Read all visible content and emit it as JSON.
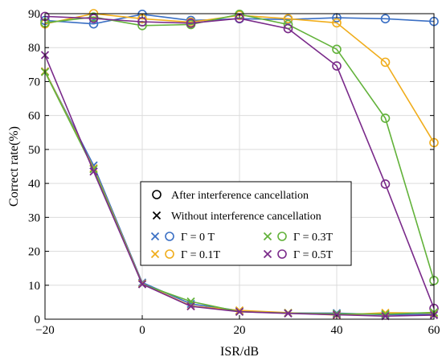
{
  "chart_data": {
    "type": "line",
    "xlabel": "ISR/dB",
    "ylabel": "Correct rate(%)",
    "xlim": [
      -20,
      60
    ],
    "ylim": [
      0,
      90
    ],
    "xticks": [
      -20,
      0,
      20,
      40,
      60
    ],
    "xtick_labels": [
      "−20",
      "0",
      "20",
      "40",
      "60"
    ],
    "yticks": [
      0,
      10,
      20,
      30,
      40,
      50,
      60,
      70,
      80,
      90
    ],
    "grid": true,
    "x": [
      -20,
      -10,
      0,
      10,
      20,
      30,
      40,
      50,
      60
    ],
    "legend": {
      "placement": "center",
      "marker_entries": [
        {
          "marker": "circle",
          "label": "After interference cancellation"
        },
        {
          "marker": "x",
          "label": "Without interference cancellation"
        }
      ],
      "gamma_entries": [
        {
          "label": "Γ = 0  T",
          "color": "#3a6fc4"
        },
        {
          "label": "Γ = 0.3T",
          "color": "#62b23a"
        },
        {
          "label": "Γ = 0.1T",
          "color": "#f0ad1c"
        },
        {
          "label": "Γ = 0.5T",
          "color": "#7a2a8a"
        }
      ]
    },
    "series": [
      {
        "gamma": "0T",
        "color": "#3a6fc4",
        "marker": "circle",
        "values": [
          88,
          87,
          89.8,
          88,
          88.5,
          88.3,
          88.8,
          88.5,
          87.7
        ]
      },
      {
        "gamma": "0.1T",
        "color": "#f0ad1c",
        "marker": "circle",
        "values": [
          87,
          90,
          88.5,
          87.5,
          89.5,
          88.5,
          87.3,
          75.7,
          52
        ]
      },
      {
        "gamma": "0.3T",
        "color": "#62b23a",
        "marker": "circle",
        "values": [
          87.3,
          89,
          86.5,
          86.8,
          89.8,
          86.8,
          79.5,
          59.2,
          11.4
        ]
      },
      {
        "gamma": "0.5T",
        "color": "#7a2a8a",
        "marker": "circle",
        "values": [
          89.2,
          88.6,
          87.6,
          87.2,
          88.6,
          85.6,
          74.6,
          39.8,
          3.2
        ]
      },
      {
        "gamma": "0T",
        "color": "#3a6fc4",
        "marker": "x",
        "values": [
          73,
          45.3,
          10.8,
          4.5,
          2.5,
          1.8,
          1.8,
          1.3,
          1.5
        ]
      },
      {
        "gamma": "0.1T",
        "color": "#f0ad1c",
        "marker": "x",
        "values": [
          73,
          44.5,
          10.5,
          3.9,
          2.6,
          1.9,
          1.2,
          1.9,
          1.8
        ]
      },
      {
        "gamma": "0.3T",
        "color": "#62b23a",
        "marker": "x",
        "values": [
          72.8,
          44.2,
          10.3,
          5.2,
          2.2,
          1.8,
          1.6,
          1.5,
          2.0
        ]
      },
      {
        "gamma": "0.5T",
        "color": "#7a2a8a",
        "marker": "x",
        "values": [
          77.8,
          43.5,
          10.3,
          3.8,
          2.2,
          1.7,
          1.3,
          0.9,
          1.2
        ]
      }
    ]
  }
}
